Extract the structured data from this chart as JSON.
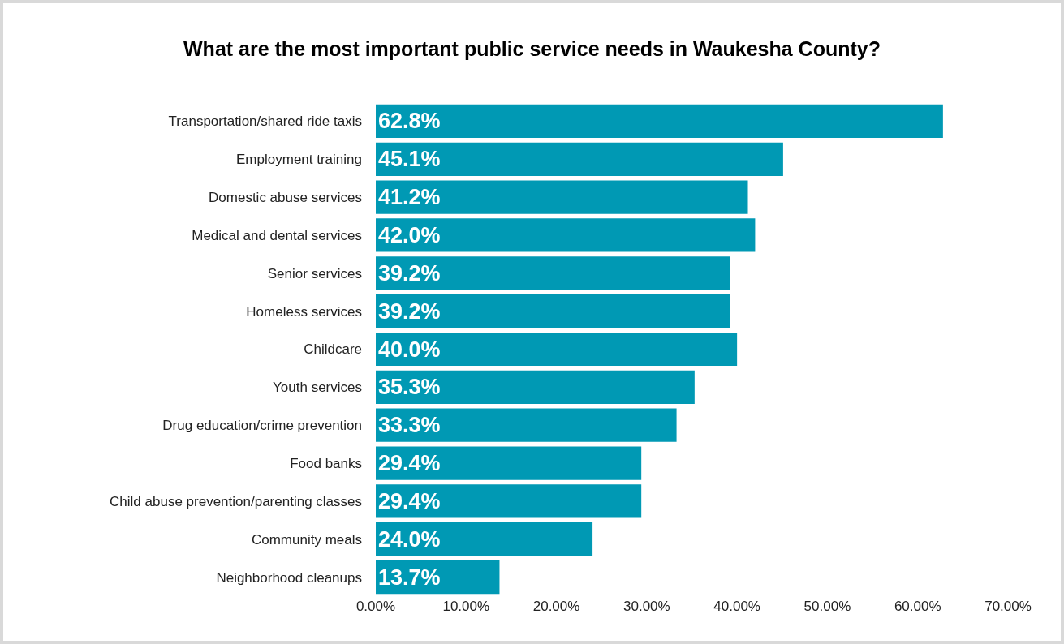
{
  "chart_data": {
    "type": "bar",
    "orientation": "horizontal",
    "title": "What are the most important public service needs in Waukesha County?",
    "categories": [
      "Transportation/shared ride taxis",
      "Employment training",
      "Domestic abuse services",
      "Medical and dental services",
      "Senior services",
      "Homeless services",
      "Childcare",
      "Youth services",
      "Drug education/crime prevention",
      "Food banks",
      "Child abuse prevention/parenting classes",
      "Community meals",
      "Neighborhood cleanups"
    ],
    "values": [
      62.8,
      45.1,
      41.2,
      42.0,
      39.2,
      39.2,
      40.0,
      35.3,
      33.3,
      29.4,
      29.4,
      24.0,
      13.7
    ],
    "value_labels": [
      "62.8%",
      "45.1%",
      "41.2%",
      "42.0%",
      "39.2%",
      "39.2%",
      "40.0%",
      "35.3%",
      "33.3%",
      "29.4%",
      "29.4%",
      "24.0%",
      "13.7%"
    ],
    "color": "#0099b4",
    "grid": false,
    "xlim": [
      0,
      70
    ],
    "xticks": [
      {
        "value": 0,
        "label": "0.00%"
      },
      {
        "value": 10,
        "label": "10.00%"
      },
      {
        "value": 20,
        "label": "20.00%"
      },
      {
        "value": 30,
        "label": "30.00%"
      },
      {
        "value": 40,
        "label": "40.00%"
      },
      {
        "value": 50,
        "label": "50.00%"
      },
      {
        "value": 60,
        "label": "60.00%"
      },
      {
        "value": 70,
        "label": "70.00%"
      }
    ]
  }
}
